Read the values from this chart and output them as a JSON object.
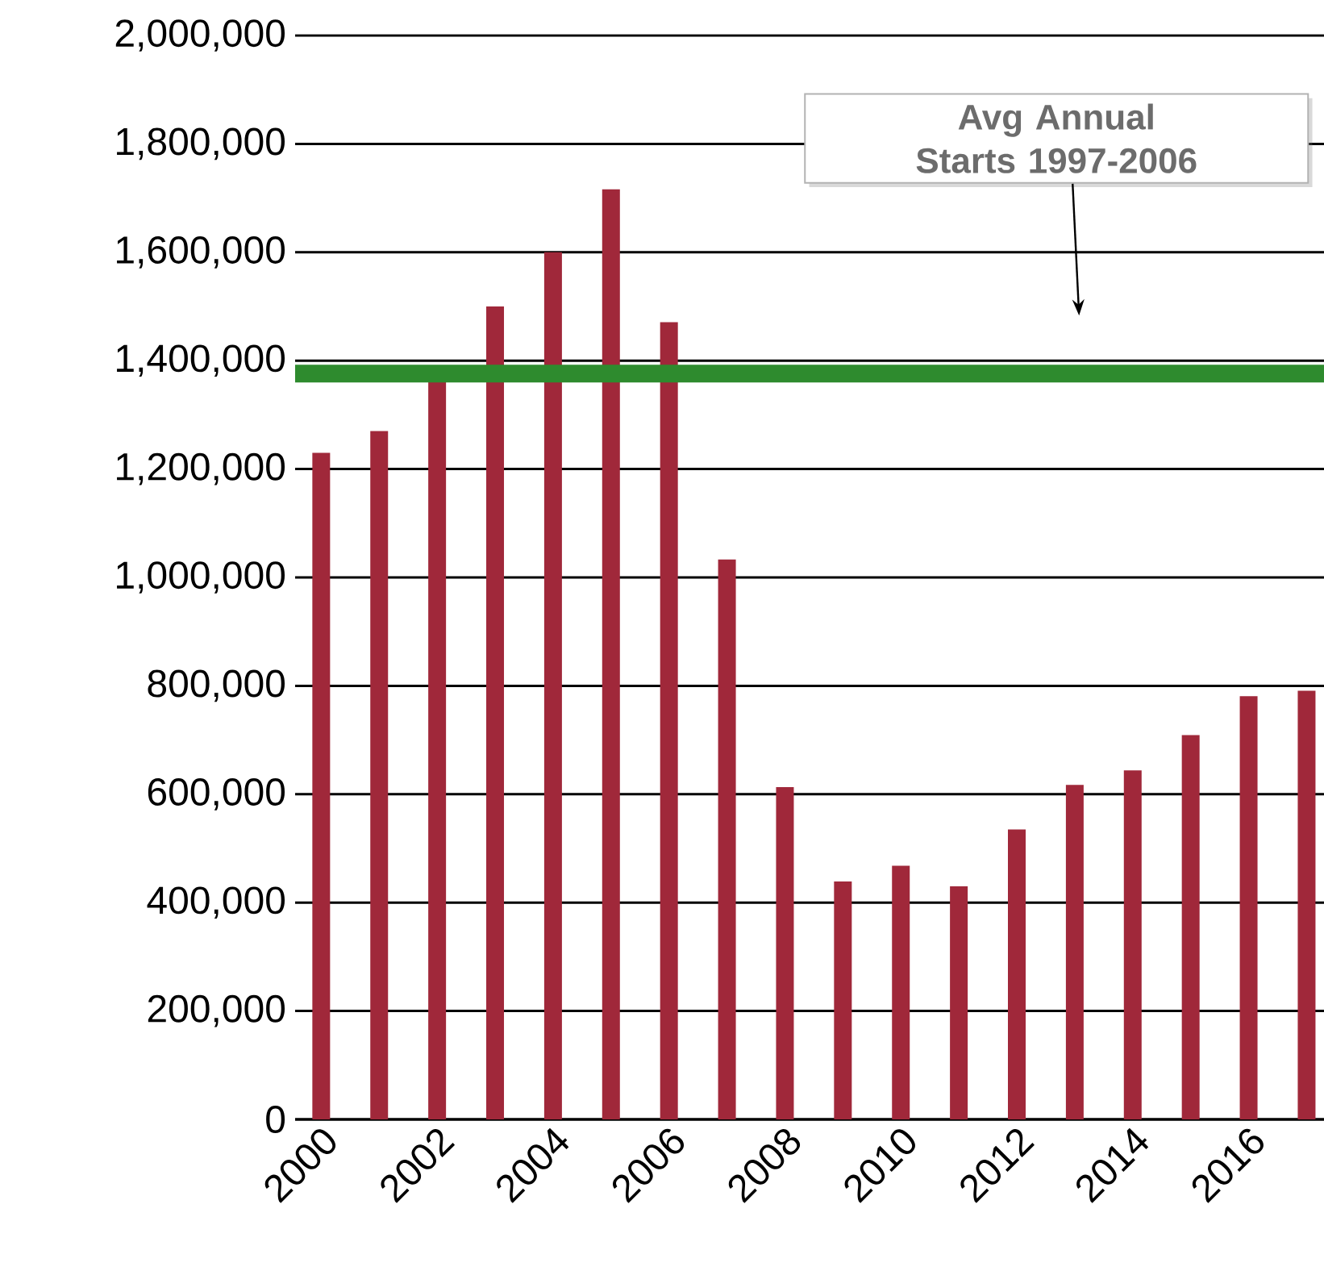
{
  "chart_data": {
    "type": "bar",
    "x": [
      2000,
      2001,
      2002,
      2003,
      2004,
      2005,
      2006,
      2007,
      2008,
      2009,
      2010,
      2011,
      2012,
      2013,
      2014,
      2015,
      2016,
      2017
    ],
    "values": [
      1230000,
      1270000,
      1360000,
      1500000,
      1600000,
      1716000,
      1471000,
      1033000,
      613000,
      439000,
      468000,
      430000,
      535000,
      617000,
      644000,
      709000,
      781000,
      791000
    ],
    "color": "#a0283a",
    "xlim": [
      1999.55,
      2017.3
    ],
    "xticks": [
      2000,
      2002,
      2004,
      2006,
      2008,
      2010,
      2012,
      2014,
      2016
    ],
    "ylim": [
      0,
      2000000
    ],
    "yticks": [
      {
        "value": 0,
        "label": "0"
      },
      {
        "value": 200000,
        "label": "200,000"
      },
      {
        "value": 400000,
        "label": "400,000"
      },
      {
        "value": 600000,
        "label": "600,000"
      },
      {
        "value": 800000,
        "label": "800,000"
      },
      {
        "value": 1000000,
        "label": "1,000,000"
      },
      {
        "value": 1200000,
        "label": "1,200,000"
      },
      {
        "value": 1400000,
        "label": "1,400,000"
      },
      {
        "value": 1600000,
        "label": "1,600,000"
      },
      {
        "value": 1800000,
        "label": "1,800,000"
      },
      {
        "value": 2000000,
        "label": "2,000,000"
      }
    ],
    "grid": "y",
    "ref_lines": [
      {
        "axis": "y",
        "value": 1376000,
        "color": "#2e8b2e"
      }
    ],
    "annotations": [
      "Avg Annual Starts 1997-2006"
    ]
  }
}
